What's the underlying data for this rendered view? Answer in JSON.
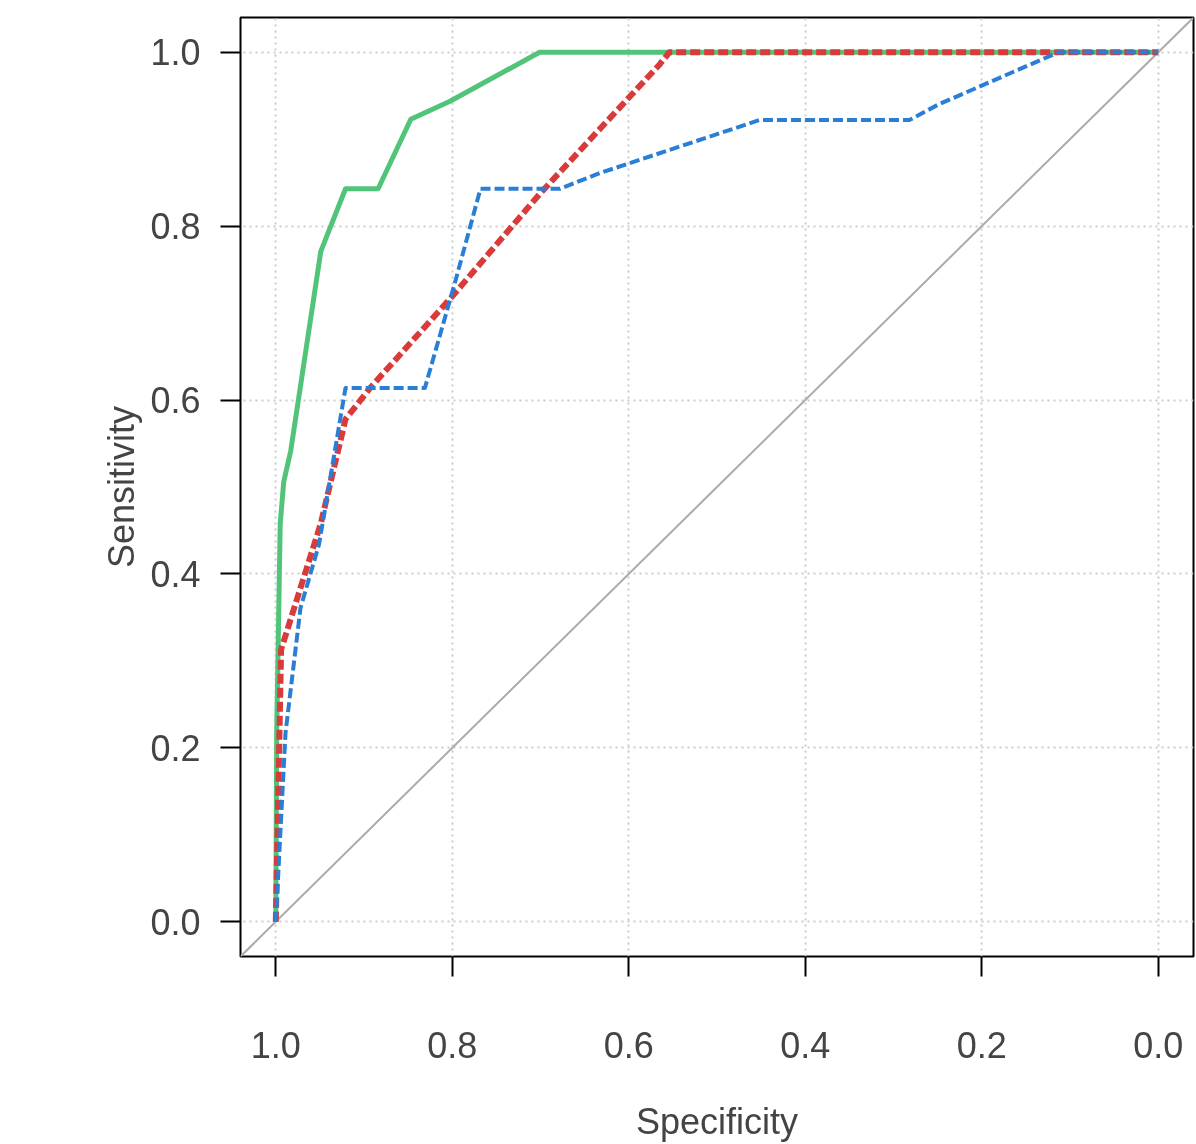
{
  "chart_data": {
    "type": "line",
    "xlabel": "Specificity",
    "ylabel": "Sensitivity",
    "xlim": [
      1.04,
      -0.04
    ],
    "ylim": [
      -0.04,
      1.04
    ],
    "xticks": [
      {
        "value": 1,
        "label": "1.0"
      },
      {
        "value": 0.8,
        "label": "0.8"
      },
      {
        "value": 0.6,
        "label": "0.6"
      },
      {
        "value": 0.4,
        "label": "0.4"
      },
      {
        "value": 0.2,
        "label": "0.2"
      },
      {
        "value": 0,
        "label": "0.0"
      }
    ],
    "yticks": [
      {
        "value": 0,
        "label": "0.0"
      },
      {
        "value": 0.2,
        "label": "0.2"
      },
      {
        "value": 0.4,
        "label": "0.4"
      },
      {
        "value": 0.6,
        "label": "0.6"
      },
      {
        "value": 0.8,
        "label": "0.8"
      },
      {
        "value": 1,
        "label": "1.0"
      }
    ],
    "grid": true,
    "marker": "none",
    "series": [
      {
        "color": "#aaaaaa",
        "line_style": "solid",
        "x": [
          1.04,
          -0.04
        ],
        "values": [
          -0.04,
          1.04
        ]
      },
      {
        "color": "#52c47a",
        "line_style": "solid",
        "x": [
          1.0,
          0.999,
          0.995,
          0.991,
          0.983,
          0.949,
          0.921,
          0.884,
          0.847,
          0.802,
          0.701,
          0.0
        ],
        "values": [
          0.0,
          0.217,
          0.458,
          0.506,
          0.542,
          0.771,
          0.843,
          0.843,
          0.923,
          0.944,
          1.0,
          1.0
        ]
      },
      {
        "color": "#d93a3a",
        "line_style": "dashed",
        "x": [
          1.0,
          0.994,
          0.949,
          0.921,
          0.893,
          0.802,
          0.701,
          0.565,
          0.554,
          0.0
        ],
        "values": [
          0.0,
          0.313,
          0.458,
          0.578,
          0.614,
          0.717,
          0.837,
          0.986,
          1.0,
          1.0
        ]
      },
      {
        "color": "#2a7fd4",
        "line_style": "dashed",
        "x": [
          1.0,
          0.989,
          0.972,
          0.951,
          0.921,
          0.831,
          0.797,
          0.768,
          0.678,
          0.633,
          0.452,
          0.282,
          0.249,
          0.113,
          0.0
        ],
        "values": [
          0.0,
          0.217,
          0.361,
          0.434,
          0.614,
          0.614,
          0.735,
          0.843,
          0.843,
          0.861,
          0.922,
          0.922,
          0.94,
          1.0,
          1.0
        ]
      }
    ]
  }
}
